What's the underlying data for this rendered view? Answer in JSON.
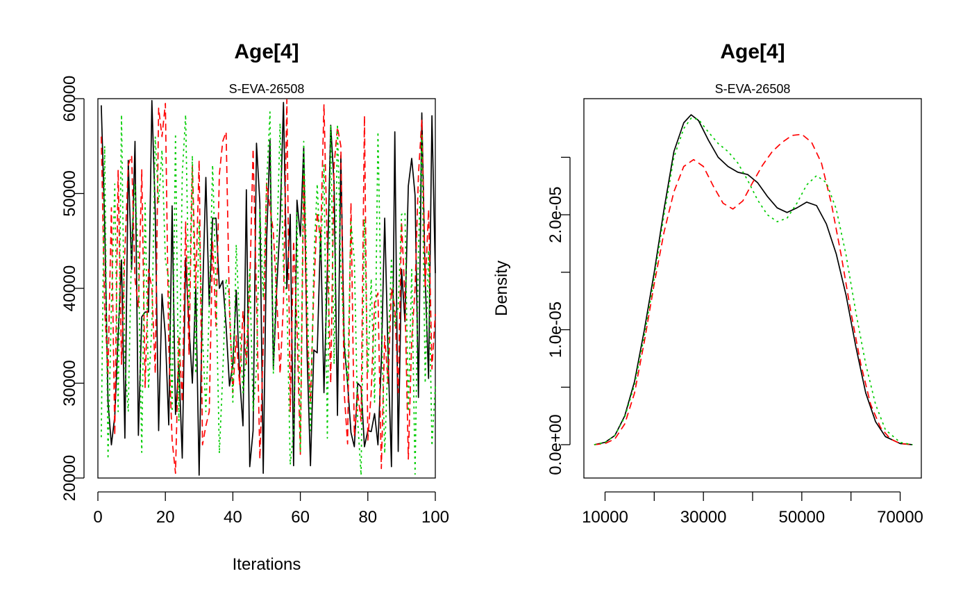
{
  "chart_data": [
    {
      "type": "line",
      "title": "Age[4]",
      "subtitle": "S-EVA-26508",
      "xlabel": "Iterations",
      "ylabel": "",
      "xlim": [
        0,
        100
      ],
      "ylim": [
        20000,
        60000
      ],
      "xticks": [
        0,
        20,
        40,
        60,
        80,
        100
      ],
      "yticks": [
        20000,
        30000,
        40000,
        50000,
        60000
      ],
      "xtick_labels": [
        "0",
        "20",
        "40",
        "60",
        "80",
        "100"
      ],
      "ytick_labels": [
        "20000",
        "30000",
        "40000",
        "50000",
        "60000"
      ],
      "grid": false,
      "series": [
        {
          "color": "#000000",
          "dash": "solid",
          "x": [
            1,
            2,
            3,
            4,
            5,
            6,
            7,
            8,
            9,
            10,
            11,
            12,
            13,
            14,
            15,
            16,
            17,
            18,
            19,
            20,
            21,
            22,
            23,
            24,
            25,
            26,
            27,
            28,
            29,
            30,
            31,
            32,
            33,
            34,
            35,
            36,
            37,
            38,
            39,
            40,
            41,
            42,
            43,
            44,
            45,
            46,
            47,
            48,
            49,
            50,
            51,
            52,
            53,
            54,
            55,
            56,
            57,
            58,
            59,
            60,
            61,
            62,
            63,
            64,
            65,
            66,
            67,
            68,
            69,
            70,
            71,
            72,
            73,
            74,
            75,
            76,
            77,
            78,
            79,
            80,
            81,
            82,
            83,
            84,
            85,
            86,
            87,
            88,
            89,
            90,
            91,
            92,
            93,
            94,
            95,
            96,
            97,
            98,
            99,
            100
          ],
          "values": [
            59300,
            47000,
            28000,
            23500,
            26500,
            35000,
            43000,
            24200,
            53500,
            42000,
            55500,
            24500,
            37000,
            37500,
            37500,
            59800,
            48000,
            25000,
            39400,
            35000,
            25600,
            48700,
            26700,
            32000,
            22100,
            43200,
            36000,
            30000,
            40000,
            20300,
            39000,
            51700,
            38200,
            47400,
            47400,
            40000,
            40800,
            36000,
            29700,
            32000,
            39800,
            30600,
            25500,
            50400,
            21200,
            25000,
            55300,
            49000,
            20500,
            45000,
            55600,
            31500,
            40000,
            47000,
            59600,
            40000,
            47800,
            21300,
            49300,
            45500,
            54900,
            33000,
            21300,
            33500,
            33200,
            46000,
            29000,
            42000,
            57200,
            51000,
            26600,
            54000,
            34000,
            30000,
            24800,
            23300,
            30000,
            29600,
            23300,
            25000,
            24900,
            26800,
            23500,
            32300,
            47400,
            33000,
            21200,
            56500,
            22800,
            42000,
            36500,
            50800,
            53700,
            49800,
            28500,
            58500,
            41000,
            30500,
            58200,
            41600
          ]
        },
        {
          "color": "#ff0000",
          "dash": "dashed",
          "x": [
            1,
            2,
            3,
            4,
            5,
            6,
            7,
            8,
            9,
            10,
            11,
            12,
            13,
            14,
            15,
            16,
            17,
            18,
            19,
            20,
            21,
            22,
            23,
            24,
            25,
            26,
            27,
            28,
            29,
            30,
            31,
            32,
            33,
            34,
            35,
            36,
            37,
            38,
            39,
            40,
            41,
            42,
            43,
            44,
            45,
            46,
            47,
            48,
            49,
            50,
            51,
            52,
            53,
            54,
            55,
            56,
            57,
            58,
            59,
            60,
            61,
            62,
            63,
            64,
            65,
            66,
            67,
            68,
            69,
            70,
            71,
            72,
            73,
            74,
            75,
            76,
            77,
            78,
            79,
            80,
            81,
            82,
            83,
            84,
            85,
            86,
            87,
            88,
            89,
            90,
            91,
            92,
            93,
            94,
            95,
            96,
            97,
            98,
            99,
            100
          ],
          "values": [
            56000,
            38000,
            31000,
            48500,
            24500,
            52500,
            32000,
            44000,
            53000,
            54000,
            41000,
            38000,
            52500,
            29500,
            42000,
            40000,
            31000,
            59000,
            56000,
            59500,
            34000,
            24000,
            20500,
            35000,
            28000,
            47000,
            33000,
            53000,
            40000,
            53500,
            23500,
            25500,
            27000,
            45000,
            36000,
            52000,
            55500,
            56500,
            37500,
            29000,
            35000,
            29800,
            37600,
            32000,
            40000,
            54700,
            39200,
            22000,
            34000,
            51100,
            48500,
            46000,
            39000,
            31000,
            38500,
            59900,
            27000,
            45000,
            36000,
            22500,
            52000,
            35000,
            28000,
            40000,
            48000,
            45000,
            59400,
            44000,
            30000,
            53000,
            57000,
            55000,
            29000,
            23600,
            49000,
            24400,
            29000,
            26000,
            58200,
            24000,
            29000,
            38500,
            39500,
            21000,
            35000,
            30000,
            40000,
            38000,
            29000,
            47000,
            39000,
            22000,
            34500,
            40000,
            52000,
            57800,
            40000,
            48300,
            31500,
            37300
          ]
        },
        {
          "color": "#00cd00",
          "dash": "dotted",
          "x": [
            1,
            2,
            3,
            4,
            5,
            6,
            7,
            8,
            9,
            10,
            11,
            12,
            13,
            14,
            15,
            16,
            17,
            18,
            19,
            20,
            21,
            22,
            23,
            24,
            25,
            26,
            27,
            28,
            29,
            30,
            31,
            32,
            33,
            34,
            35,
            36,
            37,
            38,
            39,
            40,
            41,
            42,
            43,
            44,
            45,
            46,
            47,
            48,
            49,
            50,
            51,
            52,
            53,
            54,
            55,
            56,
            57,
            58,
            59,
            60,
            61,
            62,
            63,
            64,
            65,
            66,
            67,
            68,
            69,
            70,
            71,
            72,
            73,
            74,
            75,
            76,
            77,
            78,
            79,
            80,
            81,
            82,
            83,
            84,
            85,
            86,
            87,
            88,
            89,
            90,
            91,
            92,
            93,
            94,
            95,
            96,
            97,
            98,
            99,
            100
          ],
          "values": [
            24300,
            55000,
            22000,
            38000,
            51000,
            27000,
            58300,
            32000,
            27000,
            45000,
            51000,
            43000,
            22700,
            49000,
            29400,
            36000,
            56000,
            49000,
            54600,
            43000,
            41000,
            27000,
            56300,
            26000,
            52000,
            58300,
            38000,
            54000,
            31000,
            47000,
            35000,
            27000,
            38000,
            53000,
            40300,
            22600,
            31000,
            41000,
            39000,
            28000,
            44600,
            36000,
            29000,
            33000,
            42000,
            27000,
            31500,
            48500,
            39000,
            51000,
            58600,
            31000,
            44000,
            57400,
            42000,
            39000,
            21400,
            25000,
            48000,
            22800,
            55500,
            40000,
            25000,
            43000,
            51000,
            42800,
            53000,
            24200,
            57200,
            32000,
            57300,
            42000,
            35000,
            30000,
            47000,
            43000,
            26000,
            20300,
            47300,
            31000,
            41000,
            28000,
            56500,
            37000,
            22600,
            33000,
            43200,
            36000,
            38000,
            47800,
            48000,
            27000,
            42000,
            20400,
            44000,
            56100,
            30000,
            44000,
            23400,
            29700
          ]
        }
      ]
    },
    {
      "type": "line",
      "title": "Age[4]",
      "subtitle": "S-EVA-26508",
      "xlabel": "",
      "ylabel": "Density",
      "xlim": [
        5700,
        74300
      ],
      "ylim": [
        -2.9e-06,
        3.01e-05
      ],
      "xticks": [
        10000,
        20000,
        30000,
        40000,
        50000,
        60000,
        70000
      ],
      "xtick_labels": [
        "10000",
        "",
        "30000",
        "",
        "50000",
        "",
        "70000"
      ],
      "yticks": [
        0,
        5e-06,
        1e-05,
        1.5e-05,
        2e-05,
        2.5e-05
      ],
      "ytick_labels": [
        "0.0e+00",
        "",
        "1.0e-05",
        "",
        "2.0e-05",
        ""
      ],
      "grid": false,
      "series": [
        {
          "color": "#000000",
          "dash": "solid",
          "x": [
            7800,
            10000,
            12000,
            14000,
            16000,
            18000,
            20000,
            22000,
            24000,
            26000,
            27500,
            29000,
            31000,
            33000,
            35000,
            37000,
            39000,
            41000,
            43000,
            45000,
            47000,
            49000,
            51000,
            53000,
            55000,
            57000,
            59000,
            61000,
            63000,
            65000,
            67000,
            70000,
            72500
          ],
          "values": [
            0,
            2e-07,
            8e-07,
            2.5e-06,
            5.5e-06,
            1e-05,
            1.5e-05,
            2.05e-05,
            2.55e-05,
            2.8e-05,
            2.87e-05,
            2.82e-05,
            2.65e-05,
            2.5e-05,
            2.42e-05,
            2.37e-05,
            2.35e-05,
            2.28e-05,
            2.16e-05,
            2.06e-05,
            2.02e-05,
            2.06e-05,
            2.11e-05,
            2.08e-05,
            1.92e-05,
            1.66e-05,
            1.3e-05,
            8.5e-06,
            4.5e-06,
            2e-06,
            7e-07,
            1e-07,
            0
          ]
        },
        {
          "color": "#ff0000",
          "dash": "dashed",
          "x": [
            7800,
            10000,
            12000,
            14000,
            16000,
            18000,
            20000,
            22000,
            24000,
            26000,
            28000,
            30000,
            32000,
            34000,
            36000,
            38000,
            40000,
            42000,
            44000,
            46000,
            48000,
            50000,
            52000,
            54000,
            56000,
            58000,
            60000,
            62000,
            64000,
            66000,
            68000,
            70000,
            72500
          ],
          "values": [
            0,
            1e-07,
            5e-07,
            1.8e-06,
            4.5e-06,
            9e-06,
            1.4e-05,
            1.85e-05,
            2.2e-05,
            2.42e-05,
            2.48e-05,
            2.42e-05,
            2.25e-05,
            2.1e-05,
            2.05e-05,
            2.12e-05,
            2.28e-05,
            2.43e-05,
            2.55e-05,
            2.63e-05,
            2.69e-05,
            2.7e-05,
            2.63e-05,
            2.45e-05,
            2.1e-05,
            1.65e-05,
            1.15e-05,
            7e-06,
            3.5e-06,
            1.5e-06,
            5e-07,
            1e-07,
            0
          ]
        },
        {
          "color": "#00cd00",
          "dash": "dotted",
          "x": [
            7800,
            10000,
            12000,
            14000,
            16000,
            18000,
            20000,
            22000,
            24000,
            26000,
            27500,
            29000,
            31000,
            33000,
            35000,
            37000,
            39000,
            41000,
            43000,
            45000,
            47000,
            49000,
            51000,
            53000,
            55000,
            57000,
            59000,
            61000,
            63000,
            65000,
            67000,
            70000,
            72500
          ],
          "values": [
            0,
            2e-07,
            8e-07,
            2.4e-06,
            5.2e-06,
            9.5e-06,
            1.45e-05,
            2e-05,
            2.5e-05,
            2.75e-05,
            2.84e-05,
            2.83e-05,
            2.72e-05,
            2.62e-05,
            2.55e-05,
            2.45e-05,
            2.3e-05,
            2.13e-05,
            2e-05,
            1.94e-05,
            1.97e-05,
            2.1e-05,
            2.26e-05,
            2.34e-05,
            2.28e-05,
            2.05e-05,
            1.65e-05,
            1.15e-05,
            7e-06,
            3.5e-06,
            1.3e-06,
            2e-07,
            0
          ]
        }
      ]
    }
  ]
}
